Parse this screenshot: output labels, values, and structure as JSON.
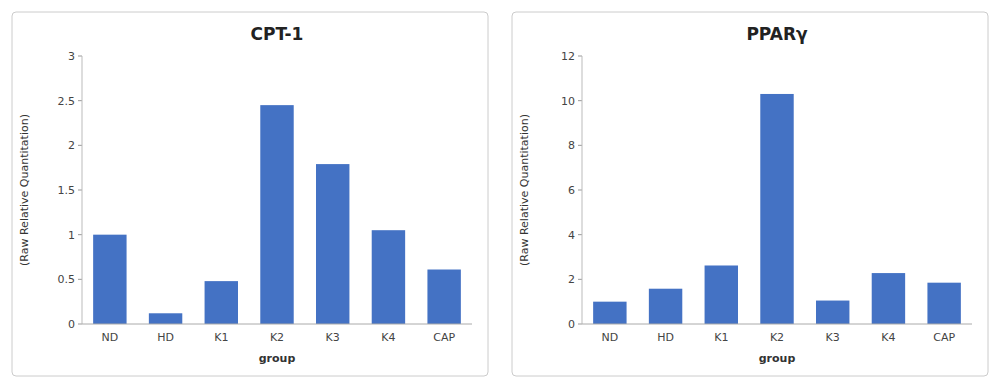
{
  "chart_data": [
    {
      "type": "bar",
      "title": "CPT-1",
      "categories": [
        "ND",
        "HD",
        "K1",
        "K2",
        "K3",
        "K4",
        "CAP"
      ],
      "values": [
        1.0,
        0.12,
        0.48,
        2.45,
        1.79,
        1.05,
        0.61
      ],
      "color": "#4472C4",
      "ylim": [
        0,
        3
      ],
      "yticks": [
        0,
        0.5,
        1,
        1.5,
        2,
        2.5,
        3
      ],
      "xlabel": "group",
      "ylabel": "(Raw Relative Quantitation)",
      "grid": false
    },
    {
      "type": "bar",
      "title": "PPARγ",
      "categories": [
        "ND",
        "HD",
        "K1",
        "K2",
        "K3",
        "K4",
        "CAP"
      ],
      "values": [
        1.0,
        1.58,
        2.62,
        10.3,
        1.05,
        2.28,
        1.85
      ],
      "color": "#4472C4",
      "ylim": [
        0,
        12
      ],
      "yticks": [
        0,
        2,
        4,
        6,
        8,
        10,
        12
      ],
      "xlabel": "group",
      "ylabel": "(Raw Relative Quantitation)",
      "grid": false
    }
  ]
}
